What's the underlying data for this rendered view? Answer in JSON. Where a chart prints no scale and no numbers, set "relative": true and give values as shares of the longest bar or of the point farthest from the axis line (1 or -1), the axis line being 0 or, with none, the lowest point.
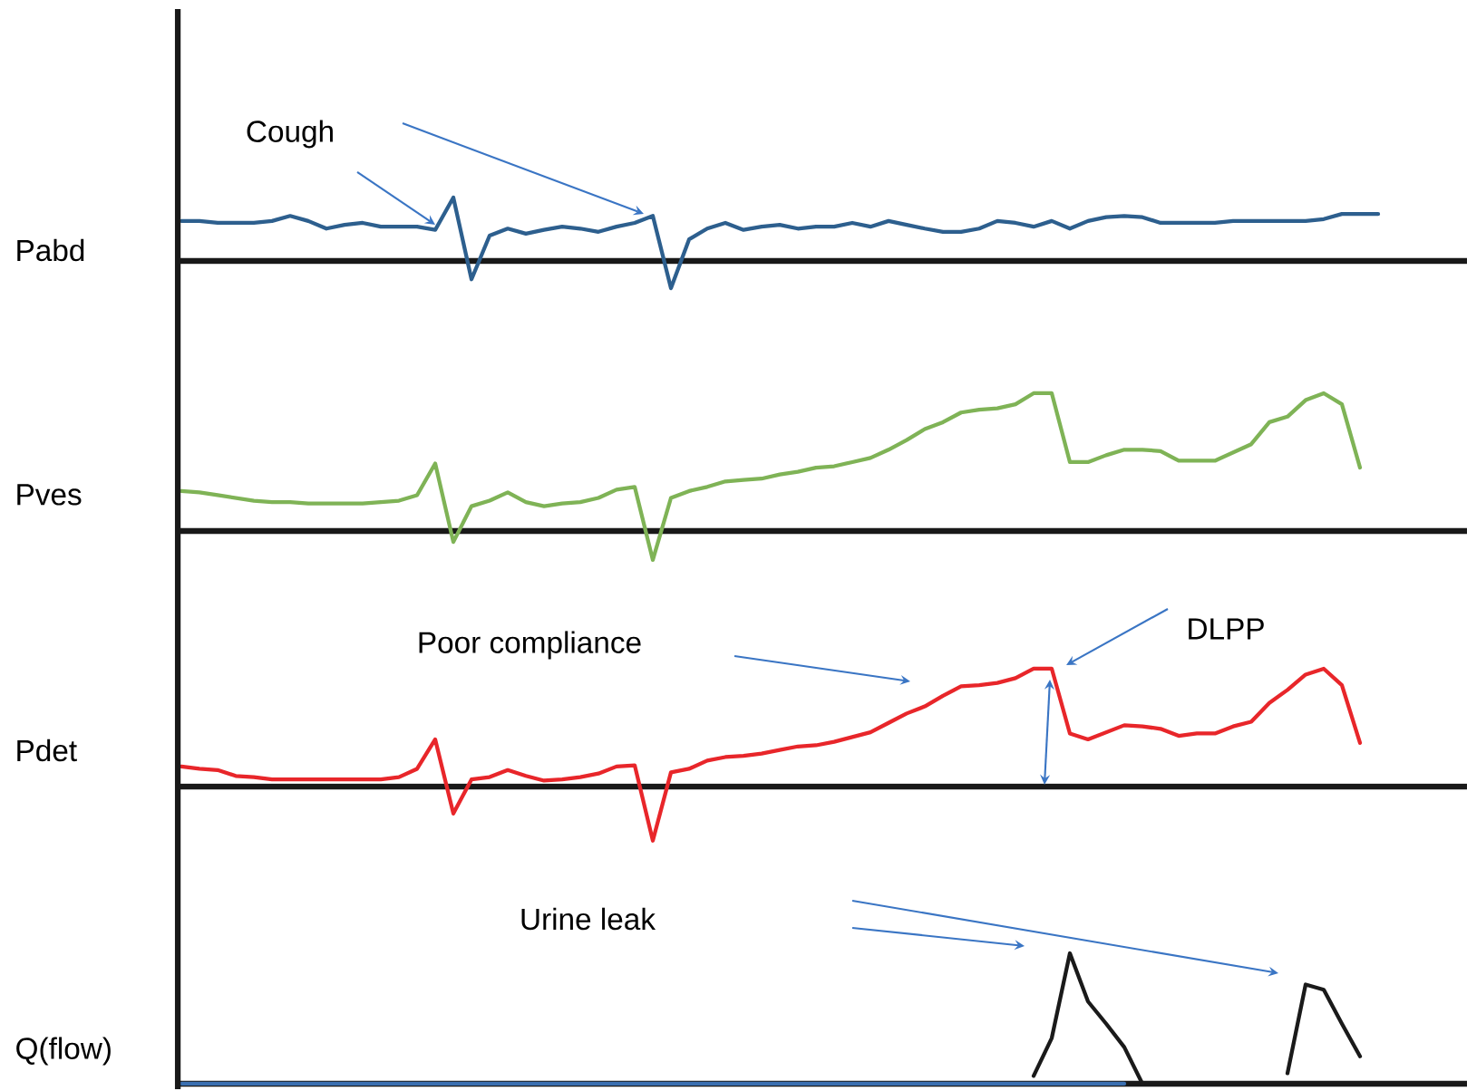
{
  "chart_data": [
    {
      "type": "line",
      "relative": true,
      "ylabel": "Pabd",
      "annotations": [
        "Cough"
      ],
      "categories": [
        null,
        null,
        null,
        null,
        null,
        null,
        null,
        null,
        null,
        null,
        null,
        null,
        null,
        null,
        null,
        null,
        null,
        null,
        null,
        null,
        null,
        null,
        null,
        null,
        null,
        null,
        null,
        null,
        null,
        null,
        null,
        null,
        null,
        null,
        null,
        null,
        null,
        null,
        null,
        null,
        null,
        null,
        null,
        null,
        null,
        null,
        null,
        null,
        null,
        null,
        null,
        null,
        null,
        null,
        null,
        null,
        null,
        null,
        null,
        null,
        null,
        null,
        null,
        null,
        null,
        null,
        null
      ],
      "series": [
        {
          "color": "#2d5f8e",
          "values": [
            0.63,
            0.63,
            0.6,
            0.6,
            0.6,
            0.63,
            0.71,
            0.63,
            0.51,
            0.57,
            0.6,
            0.54,
            0.54,
            0.54,
            0.49,
            1,
            -0.29,
            0.4,
            0.51,
            0.43,
            0.49,
            0.54,
            0.51,
            0.46,
            0.54,
            0.6,
            0.71,
            -0.43,
            0.34,
            0.51,
            0.6,
            0.49,
            0.54,
            0.57,
            0.51,
            0.54,
            0.54,
            0.6,
            0.54,
            0.63,
            0.57,
            0.51,
            0.46,
            0.46,
            0.51,
            0.63,
            0.6,
            0.54,
            0.63,
            0.51,
            0.63,
            0.69,
            0.71,
            0.69,
            0.6,
            0.6,
            0.6,
            0.6,
            0.63,
            0.63,
            0.63,
            0.63,
            0.63,
            0.66,
            0.74,
            0.74,
            0.74
          ]
        }
      ]
    },
    {
      "type": "line",
      "relative": true,
      "ylabel": "Pves",
      "categories": [
        null,
        null,
        null,
        null,
        null,
        null,
        null,
        null,
        null,
        null,
        null,
        null,
        null,
        null,
        null,
        null,
        null,
        null,
        null,
        null,
        null,
        null,
        null,
        null,
        null,
        null,
        null,
        null,
        null,
        null,
        null,
        null,
        null,
        null,
        null,
        null,
        null,
        null,
        null,
        null,
        null,
        null,
        null,
        null,
        null,
        null,
        null,
        null,
        null,
        null,
        null,
        null,
        null,
        null,
        null,
        null,
        null,
        null,
        null,
        null,
        null,
        null,
        null,
        null,
        null,
        null,
        null
      ],
      "series": [
        {
          "color": "#7fb356",
          "values": [
            0.29,
            0.28,
            0.26,
            0.24,
            0.22,
            0.21,
            0.21,
            0.2,
            0.2,
            0.2,
            0.2,
            0.21,
            0.22,
            0.26,
            0.49,
            -0.08,
            0.18,
            0.22,
            0.28,
            0.21,
            0.18,
            0.2,
            0.21,
            0.24,
            0.3,
            0.32,
            -0.21,
            0.24,
            0.29,
            0.32,
            0.36,
            0.37,
            0.38,
            0.41,
            0.43,
            0.46,
            0.47,
            0.5,
            0.53,
            0.59,
            0.66,
            0.74,
            0.79,
            0.86,
            0.88,
            0.89,
            0.92,
            1,
            1,
            0.5,
            0.5,
            0.55,
            0.59,
            0.59,
            0.58,
            0.51,
            0.51,
            0.51,
            0.57,
            0.63,
            0.79,
            0.83,
            0.95,
            1,
            0.92,
            0.46,
            null
          ]
        }
      ]
    },
    {
      "type": "line",
      "relative": true,
      "ylabel": "Pdet",
      "annotations": [
        "Poor compliance",
        "DLPP"
      ],
      "categories": [
        null,
        null,
        null,
        null,
        null,
        null,
        null,
        null,
        null,
        null,
        null,
        null,
        null,
        null,
        null,
        null,
        null,
        null,
        null,
        null,
        null,
        null,
        null,
        null,
        null,
        null,
        null,
        null,
        null,
        null,
        null,
        null,
        null,
        null,
        null,
        null,
        null,
        null,
        null,
        null,
        null,
        null,
        null,
        null,
        null,
        null,
        null,
        null,
        null,
        null,
        null,
        null,
        null,
        null,
        null,
        null,
        null,
        null,
        null,
        null,
        null,
        null,
        null,
        null,
        null,
        null,
        null
      ],
      "series": [
        {
          "color": "#e8262a",
          "values": [
            0.17,
            0.15,
            0.14,
            0.09,
            0.08,
            0.06,
            0.06,
            0.06,
            0.06,
            0.06,
            0.06,
            0.06,
            0.08,
            0.15,
            0.4,
            -0.23,
            0.06,
            0.08,
            0.14,
            0.09,
            0.05,
            0.06,
            0.08,
            0.11,
            0.17,
            0.18,
            -0.46,
            0.12,
            0.15,
            0.22,
            0.25,
            0.26,
            0.28,
            0.31,
            0.34,
            0.35,
            0.38,
            0.42,
            0.46,
            0.54,
            0.62,
            0.68,
            0.77,
            0.85,
            0.86,
            0.88,
            0.92,
            1,
            1,
            0.45,
            0.4,
            0.46,
            0.52,
            0.51,
            0.49,
            0.43,
            0.45,
            0.45,
            0.51,
            0.55,
            0.71,
            0.82,
            0.95,
            1,
            0.86,
            0.37,
            null
          ]
        }
      ]
    },
    {
      "type": "line",
      "relative": true,
      "ylabel": "Q(flow)",
      "annotations": [
        "Urine leak"
      ],
      "categories": [
        null,
        null,
        null,
        null,
        null,
        null,
        null,
        null,
        null,
        null,
        null,
        null,
        null,
        null,
        null,
        null,
        null,
        null,
        null,
        null,
        null,
        null,
        null,
        null,
        null,
        null,
        null,
        null,
        null,
        null,
        null,
        null,
        null,
        null,
        null,
        null,
        null,
        null,
        null,
        null,
        null,
        null,
        null,
        null,
        null,
        null,
        null,
        null,
        null,
        null,
        null,
        null,
        null,
        null,
        null,
        null,
        null,
        null,
        null,
        null,
        null,
        null,
        null,
        null,
        null,
        null,
        null
      ],
      "series": [
        {
          "color": "#3a6fb0",
          "values": [
            0,
            0,
            0,
            0,
            0,
            0,
            0,
            0,
            0,
            0,
            0,
            0,
            0,
            0,
            0,
            0,
            0,
            0,
            0,
            0,
            0,
            0,
            0,
            0,
            0,
            0,
            0,
            0,
            0,
            0,
            0,
            0,
            0,
            0,
            0,
            0,
            0,
            0,
            0,
            0,
            0,
            0,
            0,
            0,
            0,
            0,
            0,
            0,
            0,
            0,
            0,
            0,
            0,
            null,
            null,
            null,
            null,
            null,
            null,
            null,
            null,
            null,
            null,
            null,
            null,
            null,
            null
          ]
        },
        {
          "color": "#1a1a1a",
          "values": [
            null,
            null,
            null,
            null,
            null,
            null,
            null,
            null,
            null,
            null,
            null,
            null,
            null,
            null,
            null,
            null,
            null,
            null,
            null,
            null,
            null,
            null,
            null,
            null,
            null,
            null,
            null,
            null,
            null,
            null,
            null,
            null,
            null,
            null,
            null,
            null,
            null,
            null,
            null,
            null,
            null,
            null,
            null,
            null,
            null,
            null,
            null,
            0.06,
            0.35,
            1,
            0.63,
            0.46,
            0.28,
            0,
            null,
            null,
            null,
            null,
            null,
            null,
            null,
            0.08,
            0.76,
            0.72,
            0.46,
            0.21,
            null
          ]
        }
      ]
    }
  ]
}
